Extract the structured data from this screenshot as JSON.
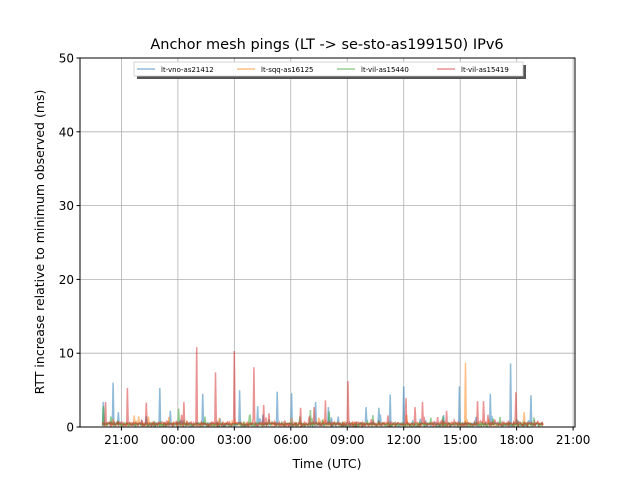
{
  "chart_data": {
    "type": "line",
    "title": "Anchor mesh pings (LT -> se-sto-as199150) IPv6",
    "xlabel": "Time (UTC)",
    "ylabel": "RTT increase relative to minimum observed (ms)",
    "x_units": "hours since 21:00 (first day)",
    "xlim": [
      -2.2,
      24.1
    ],
    "ylim": [
      0,
      50
    ],
    "yticks": [
      0,
      10,
      20,
      30,
      40,
      50
    ],
    "xticks": [
      0,
      3,
      6,
      9,
      12,
      15,
      18,
      21,
      24
    ],
    "xtick_labels": [
      "21:00",
      "00:00",
      "03:00",
      "06:00",
      "09:00",
      "12:00",
      "15:00",
      "18:00",
      "21:00"
    ],
    "grid": true,
    "legend_position": "top-center",
    "data_range": [
      -1.0,
      22.4
    ],
    "baseline_ms": 0.4,
    "series": [
      {
        "name": "lt-vno-as21412",
        "color": "#1f77b4",
        "spikes": [
          [
            -0.95,
            3.4
          ],
          [
            -0.42,
            6.0
          ],
          [
            -0.16,
            2.0
          ],
          [
            2.06,
            5.3
          ],
          [
            2.59,
            2.2
          ],
          [
            4.33,
            4.5
          ],
          [
            6.29,
            5.0
          ],
          [
            7.24,
            2.8
          ],
          [
            8.29,
            4.8
          ],
          [
            9.03,
            4.6
          ],
          [
            10.3,
            3.4
          ],
          [
            10.99,
            2.7
          ],
          [
            12.99,
            2.7
          ],
          [
            13.68,
            2.6
          ],
          [
            14.27,
            4.4
          ],
          [
            15.0,
            5.5
          ],
          [
            17.96,
            5.5
          ],
          [
            19.6,
            4.5
          ],
          [
            20.66,
            8.6
          ],
          [
            21.76,
            4.3
          ]
        ]
      },
      {
        "name": "lt-sqq-as16125",
        "color": "#ff7f0e",
        "spikes": [
          [
            18.28,
            8.7
          ],
          [
            21.39,
            2.0
          ]
        ]
      },
      {
        "name": "lt-vil-as15440",
        "color": "#2ca02c",
        "spikes": [
          [
            -0.95,
            2.8
          ],
          [
            3.06,
            2.5
          ],
          [
            10.04,
            2.3
          ],
          [
            11.04,
            2.1
          ],
          [
            21.92,
            1.3
          ]
        ]
      },
      {
        "name": "lt-vil-as15419",
        "color": "#d62728",
        "spikes": [
          [
            -0.85,
            3.4
          ],
          [
            0.32,
            5.3
          ],
          [
            1.32,
            3.3
          ],
          [
            3.33,
            3.4
          ],
          [
            4.01,
            10.8
          ],
          [
            5.02,
            7.4
          ],
          [
            6.02,
            10.3
          ],
          [
            7.03,
            8.1
          ],
          [
            7.55,
            3.0
          ],
          [
            9.51,
            2.6
          ],
          [
            10.25,
            2.7
          ],
          [
            10.83,
            3.6
          ],
          [
            12.04,
            6.2
          ],
          [
            15.11,
            3.9
          ],
          [
            15.58,
            2.7
          ],
          [
            16.0,
            3.4
          ],
          [
            17.27,
            2.2
          ],
          [
            18.91,
            3.5
          ],
          [
            19.23,
            3.5
          ],
          [
            20.97,
            4.7
          ]
        ]
      }
    ]
  }
}
